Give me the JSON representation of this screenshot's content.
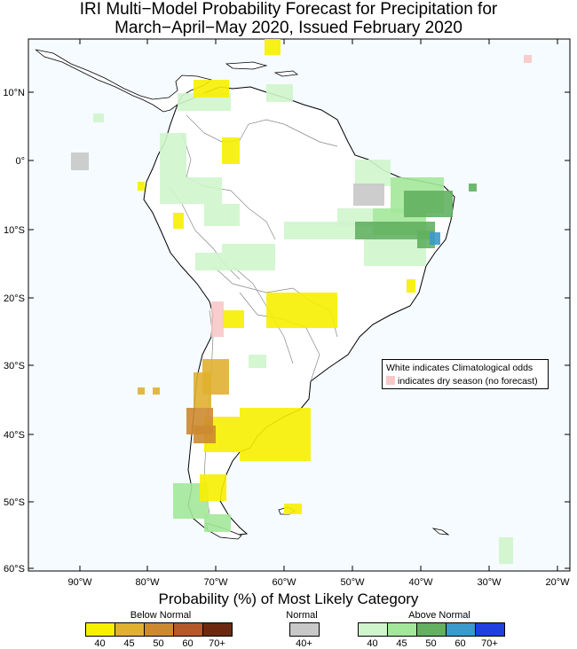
{
  "title": {
    "line1": "IRI Multi−Model Probability Forecast for Precipitation for",
    "line2": "March−April−May 2020, Issued February 2020"
  },
  "colors": {
    "ocean": "#f5fbff",
    "land": "#ffffff",
    "coast": "#000000",
    "border": "#888888",
    "below": [
      "#f7f000",
      "#e0b030",
      "#cc8a30",
      "#b5582a",
      "#6b2a10"
    ],
    "normal": "#c8c8c8",
    "above": [
      "#cff5cc",
      "#a3e89a",
      "#62b060",
      "#3a9acc",
      "#2040e0"
    ],
    "dry": "#f8c8c8"
  },
  "axes": {
    "lat_labels": [
      "10°N",
      "0°",
      "10°S",
      "20°S",
      "30°S",
      "40°S",
      "50°S",
      "60°S"
    ],
    "lon_labels": [
      "90°W",
      "80°W",
      "70°W",
      "60°W",
      "50°W",
      "40°W",
      "30°W",
      "20°W"
    ]
  },
  "note": {
    "line1": "White indicates Climatological odds",
    "line2": "indicates dry season (no forecast)"
  },
  "legend": {
    "title": "Probability (%) of Most Likely Category",
    "below_label": "Below Normal",
    "normal_label": "Normal",
    "above_label": "Above Normal",
    "below_ticks": [
      "40",
      "45",
      "50",
      "60",
      "70+"
    ],
    "normal_ticks": [
      "40+"
    ],
    "above_ticks": [
      "40",
      "45",
      "50",
      "60",
      "70+"
    ]
  }
}
